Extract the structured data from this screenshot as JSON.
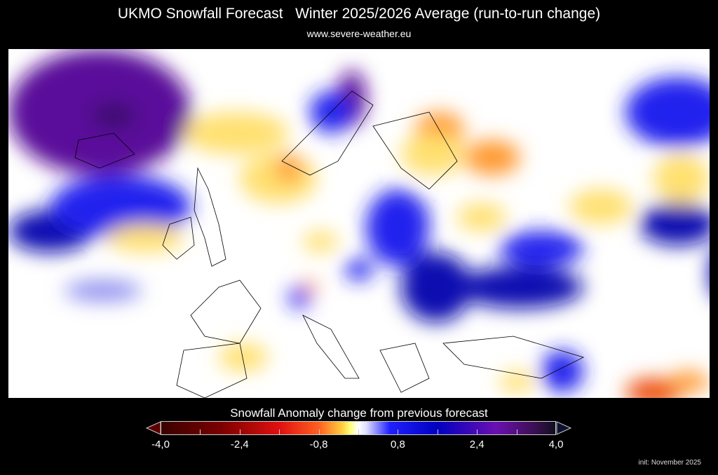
{
  "header": {
    "title": "UKMO Snowfall Forecast   Winter 2025/2026 Average (run-to-run change)",
    "subtitle": "www.severe-weather.eu"
  },
  "colorbar": {
    "title": "Snowfall Anomaly change from previous forecast",
    "tick_labels": [
      "-4,0",
      "-2,4",
      "-0,8",
      "0,8",
      "2,4",
      "4,0"
    ],
    "min": -4.0,
    "max": 4.0,
    "colors": {
      "negative_extreme": "#3a0000",
      "negative": "#e01010",
      "slight_negative": "#ffd040",
      "neutral": "#ffffff",
      "positive": "#2020ff",
      "positive_extreme": "#6a10b0"
    }
  },
  "footer": {
    "init": "init: November 2025"
  }
}
